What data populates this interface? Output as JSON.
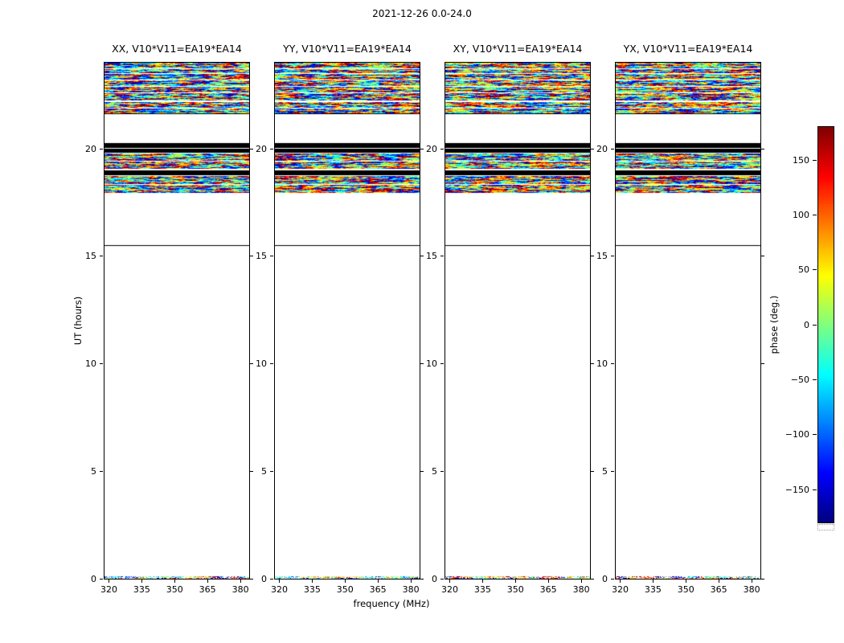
{
  "chart_data": {
    "type": "heatmap",
    "title": "2021-12-26 0.0-24.0",
    "xlabel": "frequency (MHz)",
    "ylabel": "UT (hours)",
    "xlim": [
      318,
      384
    ],
    "ylim": [
      0,
      24
    ],
    "xticks": [
      320,
      335,
      350,
      365,
      380
    ],
    "yticks": [
      0,
      5,
      10,
      15,
      20
    ],
    "grid": false,
    "legend": "colorbar-right",
    "panels": [
      {
        "title": "XX, V10*V11=EA19*EA14"
      },
      {
        "title": "YY, V10*V11=EA19*EA14"
      },
      {
        "title": "XY, V10*V11=EA19*EA14"
      },
      {
        "title": "YX, V10*V11=EA19*EA14"
      }
    ],
    "bands": [
      {
        "kind": "noise",
        "y0": 22.25,
        "y1": 24.0,
        "white_lines": [
          23.75,
          23.5,
          23.2,
          22.9,
          22.6
        ]
      },
      {
        "kind": "noise",
        "y0": 21.6,
        "y1": 22.15,
        "white_lines": [
          21.9
        ],
        "black_lines": [
          21.66
        ]
      },
      {
        "kind": "black",
        "y0": 19.8,
        "y1": 20.25,
        "white_lines": [
          20.02
        ]
      },
      {
        "kind": "noise",
        "y0": 19.05,
        "y1": 19.78,
        "white_lines": [
          19.45
        ]
      },
      {
        "kind": "black",
        "y0": 18.75,
        "y1": 19.0
      },
      {
        "kind": "noise",
        "y0": 17.95,
        "y1": 18.72,
        "white_lines": [
          18.35
        ]
      },
      {
        "kind": "hline",
        "y": 15.5
      },
      {
        "kind": "noise",
        "y0": 0.0,
        "y1": 0.12,
        "sparse": true
      }
    ],
    "colorbar": {
      "label": "phase (deg.)",
      "min": -180,
      "max": 180,
      "ticks": [
        150,
        100,
        50,
        0,
        -50,
        -100,
        -150
      ],
      "colormap": "jet"
    },
    "colors": {
      "frame": "#000000",
      "background": "#ffffff"
    }
  }
}
